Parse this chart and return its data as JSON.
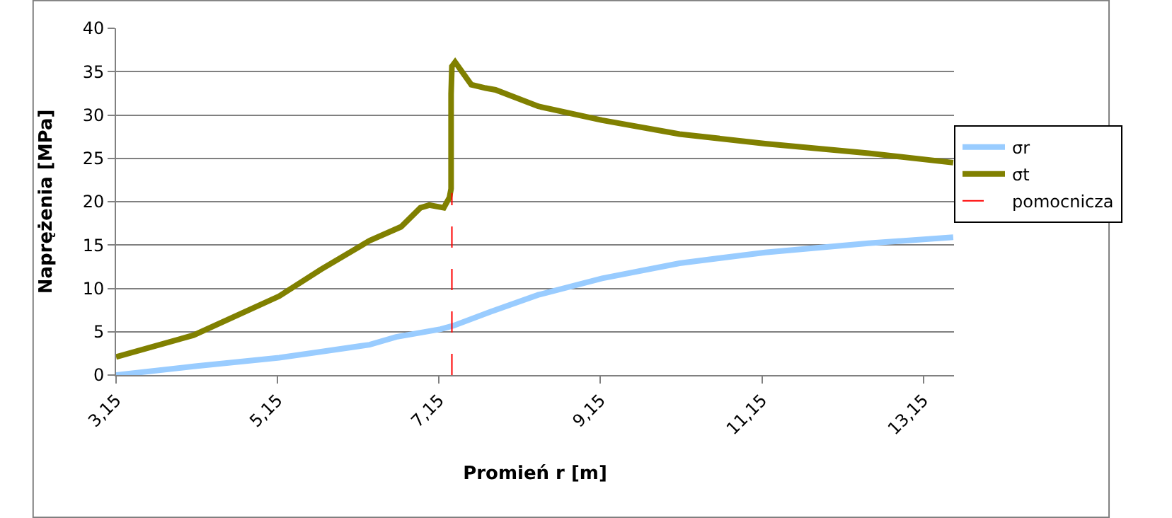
{
  "chart_data": {
    "type": "line",
    "xlabel": "Promień r [m]",
    "ylabel": "Naprężenia [MPa]",
    "xlim": [
      3.15,
      13.53
    ],
    "xticks": [
      {
        "value": 3.15,
        "label": "3,15"
      },
      {
        "value": 5.15,
        "label": "5,15"
      },
      {
        "value": 7.15,
        "label": "7,15"
      },
      {
        "value": 9.15,
        "label": "9,15"
      },
      {
        "value": 11.15,
        "label": "11,15"
      },
      {
        "value": 13.15,
        "label": "13,15"
      }
    ],
    "ylim": [
      0,
      40
    ],
    "yticks": [
      0,
      5,
      10,
      15,
      20,
      25,
      30,
      35,
      40
    ],
    "grid": "y",
    "legend": "right",
    "marker": "none",
    "series": [
      {
        "name": "σr",
        "color": "#99ccff",
        "line_style": "solid",
        "x": [
          3.15,
          4.11,
          5.17,
          5.69,
          6.29,
          6.62,
          7.17,
          7.33,
          7.79,
          8.38,
          9.17,
          10.13,
          11.19,
          12.47,
          13.52
        ],
        "values": [
          0,
          1.0,
          2.0,
          2.7,
          3.5,
          4.4,
          5.3,
          5.7,
          7.3,
          9.25,
          11.15,
          12.9,
          14.15,
          15.2,
          15.9
        ]
      },
      {
        "name": "σt",
        "color": "#808000",
        "line_style": "solid",
        "x": [
          3.15,
          4.11,
          5.17,
          5.69,
          6.29,
          6.68,
          6.92,
          7.03,
          7.21,
          7.28,
          7.3,
          7.3,
          7.31,
          7.35,
          7.55,
          7.73,
          7.85,
          8.38,
          9.17,
          10.13,
          11.19,
          12.47,
          13.52
        ],
        "values": [
          2.1,
          4.6,
          9.1,
          12.2,
          15.5,
          17.1,
          19.3,
          19.6,
          19.3,
          20.5,
          21.5,
          32.4,
          35.6,
          36.1,
          33.5,
          33.1,
          32.9,
          31.0,
          29.4,
          27.8,
          26.7,
          25.6,
          24.5
        ]
      },
      {
        "name": "pomocnicza",
        "color": "#ff0000",
        "line_style": "dashed",
        "x": [
          7.31,
          7.31
        ],
        "values": [
          0,
          21
        ]
      }
    ]
  }
}
